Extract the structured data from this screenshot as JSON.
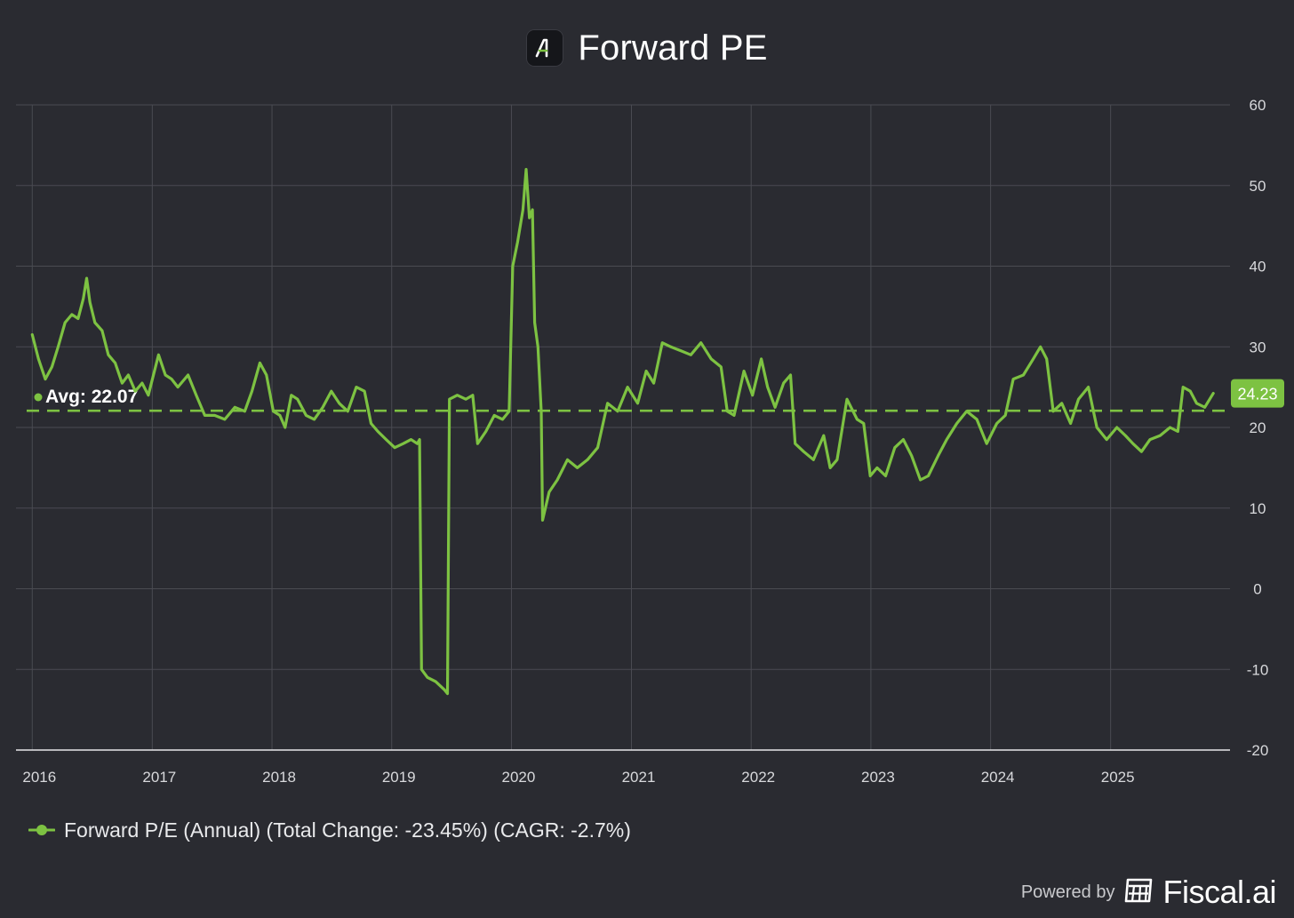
{
  "header": {
    "title": "Forward PE",
    "logo_icon": "fiscal-ai-logo-icon"
  },
  "footer": {
    "powered_by": "Powered by",
    "brand": "Fiscal.ai",
    "brand_icon": "calculator-icon"
  },
  "colors": {
    "background": "#2a2b31",
    "series": "#7dc242",
    "grid": "#4a4b52",
    "text": "#d8d9dc"
  },
  "chart_data": {
    "type": "line",
    "title": "Forward PE",
    "xlabel": "",
    "ylabel": "",
    "xlim": [
      "2015-12-15",
      "2025-12-31"
    ],
    "ylim": [
      -20,
      60
    ],
    "x_ticks": [
      "2016",
      "2017",
      "2018",
      "2019",
      "2020",
      "2021",
      "2022",
      "2023",
      "2024",
      "2025"
    ],
    "y_ticks": [
      "-20",
      "-10",
      "0",
      "10",
      "20",
      "30",
      "40",
      "50",
      "60"
    ],
    "y_axis_position": "right",
    "grid": true,
    "legend_position": "bottom-left",
    "series": [
      {
        "name": "Forward P/E (Annual) (Total Change: -23.45%) (CAGR: -2.7%)",
        "color": "#7dc242",
        "points": [
          [
            "2016-01-01",
            31.5
          ],
          [
            "2016-01-20",
            28.5
          ],
          [
            "2016-02-10",
            26.0
          ],
          [
            "2016-03-01",
            27.5
          ],
          [
            "2016-03-20",
            30.0
          ],
          [
            "2016-04-10",
            33.0
          ],
          [
            "2016-05-01",
            34.0
          ],
          [
            "2016-05-20",
            33.5
          ],
          [
            "2016-06-05",
            36.0
          ],
          [
            "2016-06-15",
            38.5
          ],
          [
            "2016-06-25",
            35.5
          ],
          [
            "2016-07-10",
            33.0
          ],
          [
            "2016-08-01",
            32.0
          ],
          [
            "2016-08-20",
            29.0
          ],
          [
            "2016-09-10",
            28.0
          ],
          [
            "2016-10-01",
            25.5
          ],
          [
            "2016-10-20",
            26.5
          ],
          [
            "2016-11-10",
            24.5
          ],
          [
            "2016-12-01",
            25.5
          ],
          [
            "2016-12-20",
            24.0
          ],
          [
            "2017-01-20",
            29.0
          ],
          [
            "2017-02-10",
            26.5
          ],
          [
            "2017-03-01",
            26.0
          ],
          [
            "2017-03-20",
            25.0
          ],
          [
            "2017-04-20",
            26.5
          ],
          [
            "2017-05-15",
            24.0
          ],
          [
            "2017-06-10",
            21.5
          ],
          [
            "2017-07-10",
            21.5
          ],
          [
            "2017-08-10",
            21.0
          ],
          [
            "2017-09-10",
            22.5
          ],
          [
            "2017-10-10",
            22.0
          ],
          [
            "2017-11-01",
            24.5
          ],
          [
            "2017-11-25",
            28.0
          ],
          [
            "2017-12-15",
            26.5
          ],
          [
            "2018-01-05",
            22.0
          ],
          [
            "2018-01-25",
            21.5
          ],
          [
            "2018-02-10",
            20.0
          ],
          [
            "2018-03-01",
            24.0
          ],
          [
            "2018-03-20",
            23.5
          ],
          [
            "2018-04-15",
            21.5
          ],
          [
            "2018-05-10",
            21.0
          ],
          [
            "2018-06-05",
            22.5
          ],
          [
            "2018-07-01",
            24.5
          ],
          [
            "2018-07-25",
            23.0
          ],
          [
            "2018-08-20",
            22.0
          ],
          [
            "2018-09-15",
            25.0
          ],
          [
            "2018-10-10",
            24.5
          ],
          [
            "2018-10-30",
            20.5
          ],
          [
            "2018-11-20",
            19.5
          ],
          [
            "2018-12-15",
            18.5
          ],
          [
            "2019-01-10",
            17.5
          ],
          [
            "2019-02-05",
            18.0
          ],
          [
            "2019-03-01",
            18.5
          ],
          [
            "2019-03-20",
            18.0
          ],
          [
            "2019-03-27",
            18.5
          ],
          [
            "2019-04-02",
            -10.0
          ],
          [
            "2019-04-20",
            -11.0
          ],
          [
            "2019-05-15",
            -11.5
          ],
          [
            "2019-06-10",
            -12.5
          ],
          [
            "2019-06-20",
            -13.0
          ],
          [
            "2019-06-26",
            23.5
          ],
          [
            "2019-07-20",
            24.0
          ],
          [
            "2019-08-15",
            23.5
          ],
          [
            "2019-09-05",
            24.0
          ],
          [
            "2019-09-20",
            18.0
          ],
          [
            "2019-10-15",
            19.5
          ],
          [
            "2019-11-10",
            21.5
          ],
          [
            "2019-12-05",
            21.0
          ],
          [
            "2019-12-25",
            22.0
          ],
          [
            "2020-01-05",
            40.0
          ],
          [
            "2020-01-20",
            43.0
          ],
          [
            "2020-02-05",
            47.0
          ],
          [
            "2020-02-15",
            52.0
          ],
          [
            "2020-02-25",
            46.0
          ],
          [
            "2020-03-05",
            47.0
          ],
          [
            "2020-03-12",
            33.0
          ],
          [
            "2020-03-22",
            30.0
          ],
          [
            "2020-04-01",
            22.0
          ],
          [
            "2020-04-05",
            8.5
          ],
          [
            "2020-04-25",
            12.0
          ],
          [
            "2020-05-20",
            13.5
          ],
          [
            "2020-06-20",
            16.0
          ],
          [
            "2020-07-20",
            15.0
          ],
          [
            "2020-08-20",
            16.0
          ],
          [
            "2020-09-20",
            17.5
          ],
          [
            "2020-10-20",
            23.0
          ],
          [
            "2020-11-20",
            22.0
          ],
          [
            "2020-12-20",
            25.0
          ],
          [
            "2021-01-20",
            23.0
          ],
          [
            "2021-02-15",
            27.0
          ],
          [
            "2021-03-10",
            25.5
          ],
          [
            "2021-04-05",
            30.5
          ],
          [
            "2021-05-01",
            30.0
          ],
          [
            "2021-06-01",
            29.5
          ],
          [
            "2021-07-01",
            29.0
          ],
          [
            "2021-08-01",
            30.5
          ],
          [
            "2021-09-01",
            28.5
          ],
          [
            "2021-10-01",
            27.5
          ],
          [
            "2021-10-20",
            22.0
          ],
          [
            "2021-11-10",
            21.5
          ],
          [
            "2021-12-10",
            27.0
          ],
          [
            "2022-01-05",
            24.0
          ],
          [
            "2022-02-01",
            28.5
          ],
          [
            "2022-02-20",
            25.0
          ],
          [
            "2022-03-15",
            22.5
          ],
          [
            "2022-04-10",
            25.5
          ],
          [
            "2022-05-01",
            26.5
          ],
          [
            "2022-05-15",
            18.0
          ],
          [
            "2022-06-10",
            17.0
          ],
          [
            "2022-07-10",
            16.0
          ],
          [
            "2022-08-10",
            19.0
          ],
          [
            "2022-08-30",
            15.0
          ],
          [
            "2022-09-20",
            16.0
          ],
          [
            "2022-10-20",
            23.5
          ],
          [
            "2022-11-20",
            21.0
          ],
          [
            "2022-12-10",
            20.5
          ],
          [
            "2022-12-30",
            14.0
          ],
          [
            "2023-01-20",
            15.0
          ],
          [
            "2023-02-15",
            14.0
          ],
          [
            "2023-03-15",
            17.5
          ],
          [
            "2023-04-10",
            18.5
          ],
          [
            "2023-05-05",
            16.5
          ],
          [
            "2023-06-01",
            13.5
          ],
          [
            "2023-06-25",
            14.0
          ],
          [
            "2023-07-25",
            16.5
          ],
          [
            "2023-08-20",
            18.5
          ],
          [
            "2023-09-20",
            20.5
          ],
          [
            "2023-10-20",
            22.0
          ],
          [
            "2023-11-20",
            21.0
          ],
          [
            "2023-12-20",
            18.0
          ],
          [
            "2024-01-20",
            20.5
          ],
          [
            "2024-02-15",
            21.5
          ],
          [
            "2024-03-10",
            26.0
          ],
          [
            "2024-04-10",
            26.5
          ],
          [
            "2024-05-10",
            28.5
          ],
          [
            "2024-06-01",
            30.0
          ],
          [
            "2024-06-20",
            28.5
          ],
          [
            "2024-07-10",
            22.0
          ],
          [
            "2024-08-05",
            23.0
          ],
          [
            "2024-09-01",
            20.5
          ],
          [
            "2024-09-25",
            23.5
          ],
          [
            "2024-10-25",
            25.0
          ],
          [
            "2024-11-20",
            20.0
          ],
          [
            "2024-12-20",
            18.5
          ],
          [
            "2025-01-20",
            20.0
          ],
          [
            "2025-02-15",
            19.0
          ],
          [
            "2025-03-10",
            18.0
          ],
          [
            "2025-04-05",
            17.0
          ],
          [
            "2025-05-01",
            18.5
          ],
          [
            "2025-06-01",
            19.0
          ],
          [
            "2025-07-01",
            20.0
          ],
          [
            "2025-07-25",
            19.5
          ],
          [
            "2025-08-10",
            25.0
          ],
          [
            "2025-09-01",
            24.5
          ],
          [
            "2025-09-20",
            23.0
          ],
          [
            "2025-10-15",
            22.5
          ],
          [
            "2025-11-10",
            24.23
          ]
        ]
      }
    ],
    "average": {
      "value": 22.07,
      "label": "Avg: 22.07",
      "style": "dashed"
    },
    "last_value_label": "24.23"
  }
}
